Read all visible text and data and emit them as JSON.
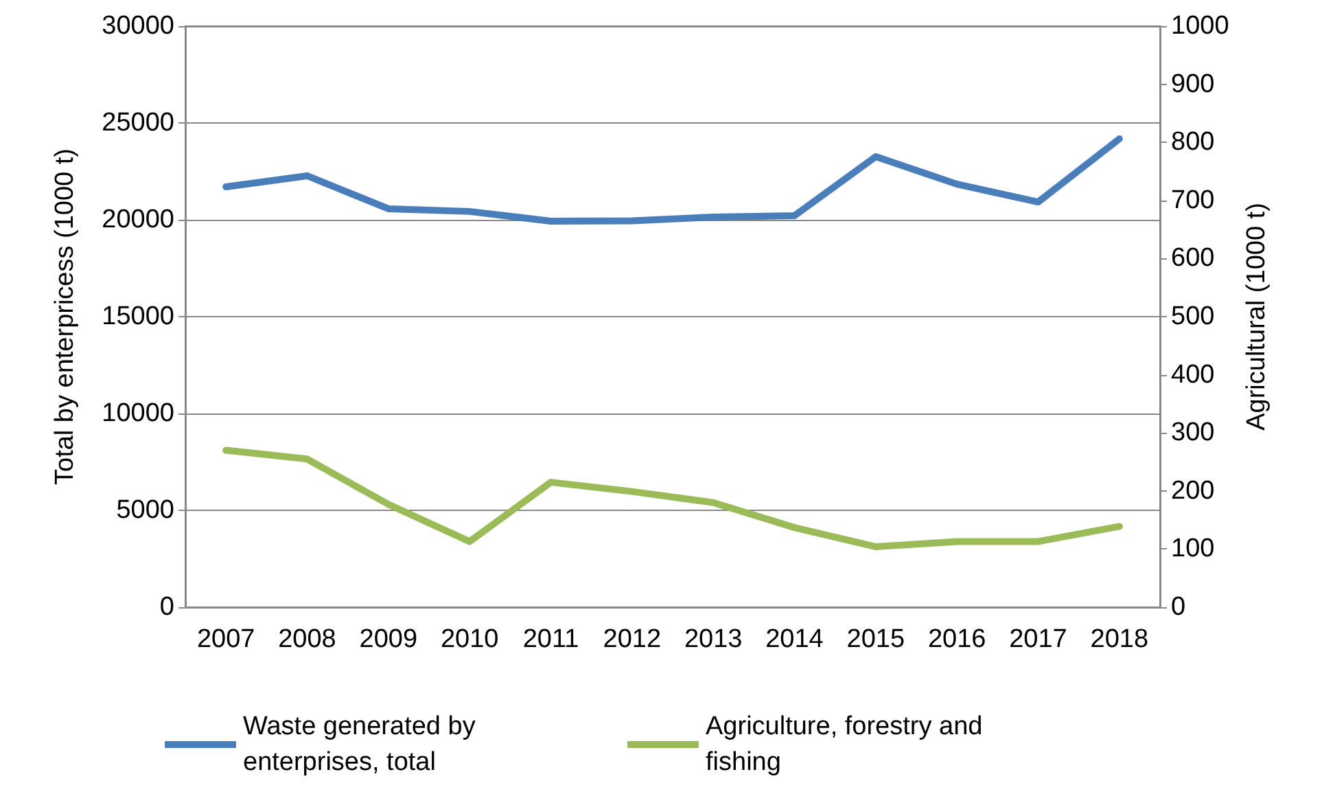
{
  "chart_data": {
    "type": "line",
    "ylabel": "Total by enterpricess (1000 t)",
    "y2label": "Agricultural (1000 t)",
    "categories": [
      "2007",
      "2008",
      "2009",
      "2010",
      "2011",
      "2012",
      "2013",
      "2014",
      "2015",
      "2016",
      "2017",
      "2018"
    ],
    "series": [
      {
        "name": "Waste generated by enterprises, total",
        "color": "#4a7ebb",
        "values": [
          21700,
          22270,
          20570,
          20430,
          19930,
          19950,
          20140,
          20210,
          23260,
          21840,
          20920,
          24180
        ]
      },
      {
        "name": "Agriculture, forestry and fishing",
        "color": "#9bbb59",
        "axis": "y2",
        "values": [
          270,
          255,
          177,
          113,
          215,
          199,
          180,
          137,
          104,
          113,
          113,
          139
        ]
      }
    ],
    "ylim": [
      0,
      30000
    ],
    "yticks": [
      0,
      5000,
      10000,
      15000,
      20000,
      25000,
      30000
    ],
    "y2lim": [
      0,
      1000
    ],
    "y2ticks": [
      0,
      100,
      200,
      300,
      400,
      500,
      600,
      700,
      800,
      900,
      1000
    ],
    "grid": "y",
    "legend": "bottom",
    "marker": "none",
    "line_style": "solid"
  }
}
